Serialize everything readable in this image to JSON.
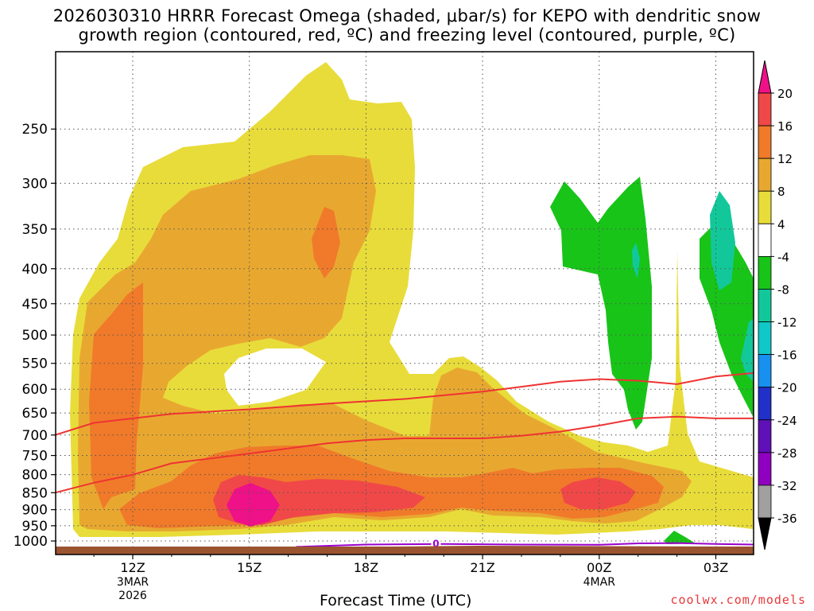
{
  "title_line1": "2026030310 HRRR Forecast Omega (shaded, μbar/s) for KEPO with dendritic snow",
  "title_line2": "growth region (contoured, red, ºC) and freezing level (contoured, purple, ºC)",
  "credit": "coolwx.com/models",
  "chart_data": {
    "type": "heatmap",
    "title": "2026030310 HRRR Forecast Omega (shaded, μbar/s) for KEPO with dendritic snow growth region (contoured, red, ºC) and freezing level (contoured, purple, ºC)",
    "xlabel": "Forecast Time (UTC)",
    "ylabel": "",
    "y_scale": "log-pressure (inverted)",
    "y_ticks": [
      250,
      300,
      350,
      400,
      450,
      500,
      550,
      600,
      650,
      700,
      750,
      800,
      850,
      900,
      950,
      1000
    ],
    "x_ticks": [
      {
        "label": "12Z",
        "sub": [
          "3MAR",
          "2026"
        ],
        "hour": 12
      },
      {
        "label": "15Z",
        "sub": [],
        "hour": 15
      },
      {
        "label": "18Z",
        "sub": [],
        "hour": 18
      },
      {
        "label": "21Z",
        "sub": [],
        "hour": 21
      },
      {
        "label": "00Z",
        "sub": [
          "4MAR"
        ],
        "hour": 24
      },
      {
        "label": "03Z",
        "sub": [],
        "hour": 27
      }
    ],
    "xlim": [
      "2026-03-03 10Z",
      "2026-03-04 04Z"
    ],
    "grid": true,
    "colorbar_ticks": [
      20,
      16,
      12,
      8,
      4,
      -4,
      -8,
      -12,
      -16,
      -20,
      -24,
      -28,
      -32,
      -36
    ],
    "colorbar_colors": [
      "#ee1188",
      "#f04848",
      "#f07a2a",
      "#e8a830",
      "#e8dc3a",
      "#ffffff",
      "#18c418",
      "#12c89a",
      "#10c8c8",
      "#1890f0",
      "#2030c8",
      "#6010b8",
      "#9000c0",
      "#a0a0a0",
      "#000000"
    ],
    "dgz_contours": [
      {
        "name": "-12",
        "points": [
          [
            10,
            700
          ],
          [
            11,
            672
          ],
          [
            12,
            662
          ],
          [
            13,
            652
          ],
          [
            15,
            642
          ],
          [
            17,
            630
          ],
          [
            19,
            620
          ],
          [
            21,
            605
          ],
          [
            22,
            595
          ],
          [
            23,
            585
          ],
          [
            24,
            580
          ],
          [
            25,
            583
          ],
          [
            26,
            590
          ],
          [
            27,
            575
          ],
          [
            28,
            568
          ]
        ]
      },
      {
        "name": "-18",
        "points": [
          [
            10,
            850
          ],
          [
            11,
            822
          ],
          [
            12,
            800
          ],
          [
            13,
            770
          ],
          [
            15,
            745
          ],
          [
            17,
            720
          ],
          [
            18,
            712
          ],
          [
            19,
            708
          ],
          [
            21,
            708
          ],
          [
            22,
            702
          ],
          [
            23,
            692
          ],
          [
            24,
            678
          ],
          [
            25,
            662
          ],
          [
            26,
            658
          ],
          [
            27,
            662
          ],
          [
            28,
            662
          ]
        ]
      }
    ],
    "freezing_level": {
      "label": "0",
      "points": [
        [
          16.2,
          1020
        ],
        [
          18,
          1012
        ],
        [
          20,
          1010
        ],
        [
          22,
          1012
        ],
        [
          24,
          1013
        ],
        [
          25,
          1008
        ],
        [
          26,
          1007
        ],
        [
          27,
          1010
        ],
        [
          28,
          1012
        ]
      ]
    },
    "omega_features": [
      {
        "level": "4",
        "note": "broad yellow upward-motion region 11Z-21Z, 230-1000 hPa"
      },
      {
        "level": "20",
        "note": "max upward motion near 15Z at 900 hPa"
      },
      {
        "level": "-8",
        "note": "green downward motion 00Z-01Z and 02Z-04Z above 600 hPa"
      }
    ]
  }
}
